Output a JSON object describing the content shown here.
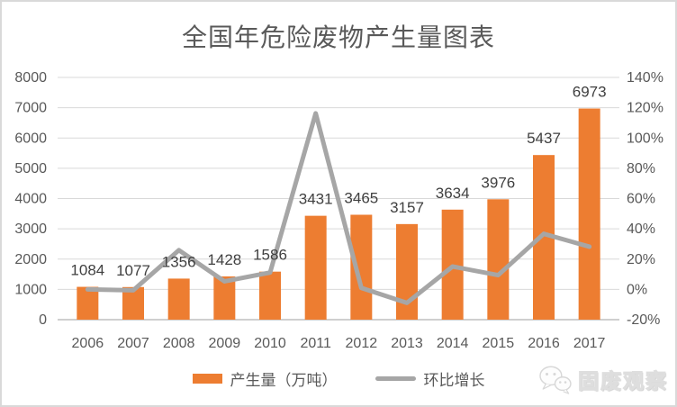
{
  "chart_data": {
    "type": "bar+line",
    "title": "全国年危险废物产生量图表",
    "categories": [
      "2006",
      "2007",
      "2008",
      "2009",
      "2010",
      "2011",
      "2012",
      "2013",
      "2014",
      "2015",
      "2016",
      "2017"
    ],
    "series": [
      {
        "name": "产生量（万吨）",
        "type": "bar",
        "axis": "left",
        "color": "#ED7D31",
        "values": [
          1084,
          1077,
          1356,
          1428,
          1586,
          3431,
          3465,
          3157,
          3634,
          3976,
          5437,
          6973
        ],
        "data_labels": [
          "1084",
          "1077",
          "1356",
          "1428",
          "1586",
          "3431",
          "3465",
          "3157",
          "3634",
          "3976",
          "5437",
          "6973"
        ]
      },
      {
        "name": "环比增长",
        "type": "line",
        "axis": "right",
        "color": "#A6A6A6",
        "values_pct": [
          0,
          -0.6,
          25.9,
          5.3,
          11.1,
          116.3,
          1.0,
          -8.9,
          15.1,
          9.4,
          36.7,
          28.2
        ]
      }
    ],
    "left_axis": {
      "min": 0,
      "max": 8000,
      "step": 1000,
      "tick_labels": [
        "0",
        "1000",
        "2000",
        "3000",
        "4000",
        "5000",
        "6000",
        "7000",
        "8000"
      ]
    },
    "right_axis": {
      "min": -20,
      "max": 140,
      "step": 20,
      "tick_labels": [
        "-20%",
        "0%",
        "20%",
        "40%",
        "60%",
        "80%",
        "100%",
        "120%",
        "140%"
      ]
    },
    "grid": true,
    "legend_position": "bottom"
  },
  "watermark": {
    "text": "固废观察",
    "icon": "wechat-icon"
  },
  "colors": {
    "bar": "#ED7D31",
    "line": "#A6A6A6",
    "grid": "#D9D9D9",
    "axis_line": "#BFBFBF",
    "tick_text": "#595959",
    "data_label_text": "#404040",
    "title_text": "#595959",
    "border": "#D9D9D9"
  }
}
